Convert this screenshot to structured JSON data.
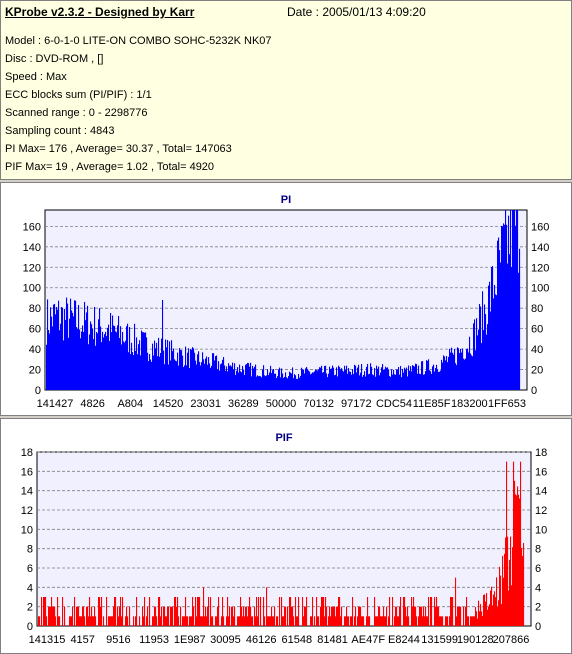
{
  "header": {
    "title": "KProbe v2.3.2 - Designed by Karr",
    "date": "Date : 2005/01/13 4:09:20",
    "lines": [
      "Model : 6-0-1-0 LITE-ON COMBO SOHC-5232K NK07",
      "Disc : DVD-ROM ,  []",
      "Speed : Max",
      "ECC blocks sum (PI/PIF) : 1/1",
      "Scanned range : 0 - 2298776",
      "Sampling count : 4843",
      "PI Max= 176 , Average= 30.37 , Total= 147063",
      "PIF Max= 19 , Average= 1.02 , Total= 4920"
    ]
  },
  "chart_data": [
    {
      "type": "bar",
      "title": "PI",
      "color": "#0000ff",
      "ylim": [
        0,
        176
      ],
      "yticks": [
        0,
        20,
        40,
        60,
        80,
        100,
        120,
        140,
        160
      ],
      "xtick_labels": [
        "141427",
        "4826",
        "A804",
        "14520",
        "23031",
        "36289",
        "50000",
        "70132",
        "97172",
        "CDC54",
        "11E85F",
        "183200",
        "1FF653"
      ],
      "grid": true,
      "profile_x": [
        0,
        0.02,
        0.08,
        0.14,
        0.2,
        0.3,
        0.4,
        0.5,
        0.6,
        0.68,
        0.76,
        0.82,
        0.86,
        0.9,
        0.93,
        0.96,
        0.985,
        1.0
      ],
      "profile_y": [
        68,
        72,
        66,
        58,
        45,
        32,
        22,
        16,
        18,
        20,
        18,
        24,
        32,
        50,
        80,
        125,
        160,
        170
      ],
      "spikes": [
        {
          "x": 0.245,
          "y": 88
        },
        {
          "x": 0.985,
          "y": 176
        }
      ]
    },
    {
      "type": "bar",
      "title": "PIF",
      "color": "#ff0000",
      "ylim": [
        0,
        18
      ],
      "yticks": [
        0,
        2,
        4,
        6,
        8,
        10,
        12,
        14,
        16,
        18
      ],
      "xtick_labels": [
        "141315",
        "4157",
        "9516",
        "11953",
        "1E987",
        "30095",
        "46126",
        "61548",
        "81481",
        "AE47F",
        "E8244",
        "131599",
        "190128",
        "207866"
      ],
      "grid": true,
      "profile_x": [
        0,
        0.5,
        0.9,
        0.93,
        0.95,
        0.97,
        0.985,
        1.0
      ],
      "profile_y": [
        1.6,
        1.5,
        1.6,
        2.5,
        4,
        7,
        11,
        13
      ],
      "spikes": [
        {
          "x": 0.965,
          "y": 17
        },
        {
          "x": 0.98,
          "y": 17
        },
        {
          "x": 0.993,
          "y": 17
        },
        {
          "x": 0.015,
          "y": 3
        },
        {
          "x": 0.34,
          "y": 4
        },
        {
          "x": 0.47,
          "y": 4
        },
        {
          "x": 0.86,
          "y": 5
        }
      ]
    }
  ]
}
